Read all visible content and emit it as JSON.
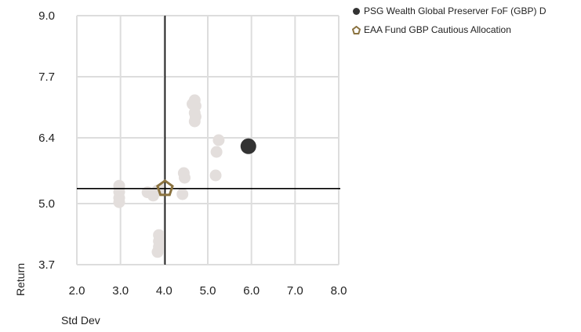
{
  "chart_data": {
    "type": "scatter",
    "xlabel": "Std Dev",
    "ylabel": "Return",
    "xlim": [
      2.0,
      8.0
    ],
    "ylim": [
      3.7,
      9.0
    ],
    "x_ticks": [
      "2.0",
      "3.0",
      "4.0",
      "5.0",
      "6.0",
      "7.0",
      "8.0"
    ],
    "y_ticks": [
      "3.7",
      "5.0",
      "6.4",
      "7.7",
      "9.0"
    ],
    "grid": true,
    "legend_position": "top-right",
    "crosshair": {
      "x": 4.02,
      "y": 5.32
    },
    "peers": {
      "color": "#e3dedc",
      "points": [
        {
          "x": 2.97,
          "y": 5.38
        },
        {
          "x": 2.97,
          "y": 5.25
        },
        {
          "x": 2.97,
          "y": 5.12
        },
        {
          "x": 2.97,
          "y": 5.03
        },
        {
          "x": 3.62,
          "y": 5.24
        },
        {
          "x": 3.75,
          "y": 5.17
        },
        {
          "x": 3.85,
          "y": 5.28
        },
        {
          "x": 3.92,
          "y": 5.3
        },
        {
          "x": 3.88,
          "y": 4.33
        },
        {
          "x": 3.88,
          "y": 4.2
        },
        {
          "x": 3.88,
          "y": 4.08
        },
        {
          "x": 3.85,
          "y": 3.97
        },
        {
          "x": 4.42,
          "y": 5.2
        },
        {
          "x": 4.47,
          "y": 5.55
        },
        {
          "x": 4.45,
          "y": 5.65
        },
        {
          "x": 4.7,
          "y": 7.2
        },
        {
          "x": 4.65,
          "y": 7.12
        },
        {
          "x": 4.72,
          "y": 7.08
        },
        {
          "x": 4.7,
          "y": 6.93
        },
        {
          "x": 4.72,
          "y": 6.85
        },
        {
          "x": 4.7,
          "y": 6.75
        },
        {
          "x": 5.18,
          "y": 5.6
        },
        {
          "x": 5.2,
          "y": 6.1
        },
        {
          "x": 5.25,
          "y": 6.35
        }
      ]
    },
    "series": [
      {
        "name": "PSG Wealth Global Preserver FoF (GBP) D",
        "color": "#333333",
        "marker": "circle",
        "points": [
          {
            "x": 5.93,
            "y": 6.22
          }
        ]
      },
      {
        "name": "EAA Fund GBP Cautious Allocation",
        "color": "#8b7340",
        "marker": "pentagon",
        "points": [
          {
            "x": 4.02,
            "y": 5.32
          }
        ]
      }
    ]
  }
}
